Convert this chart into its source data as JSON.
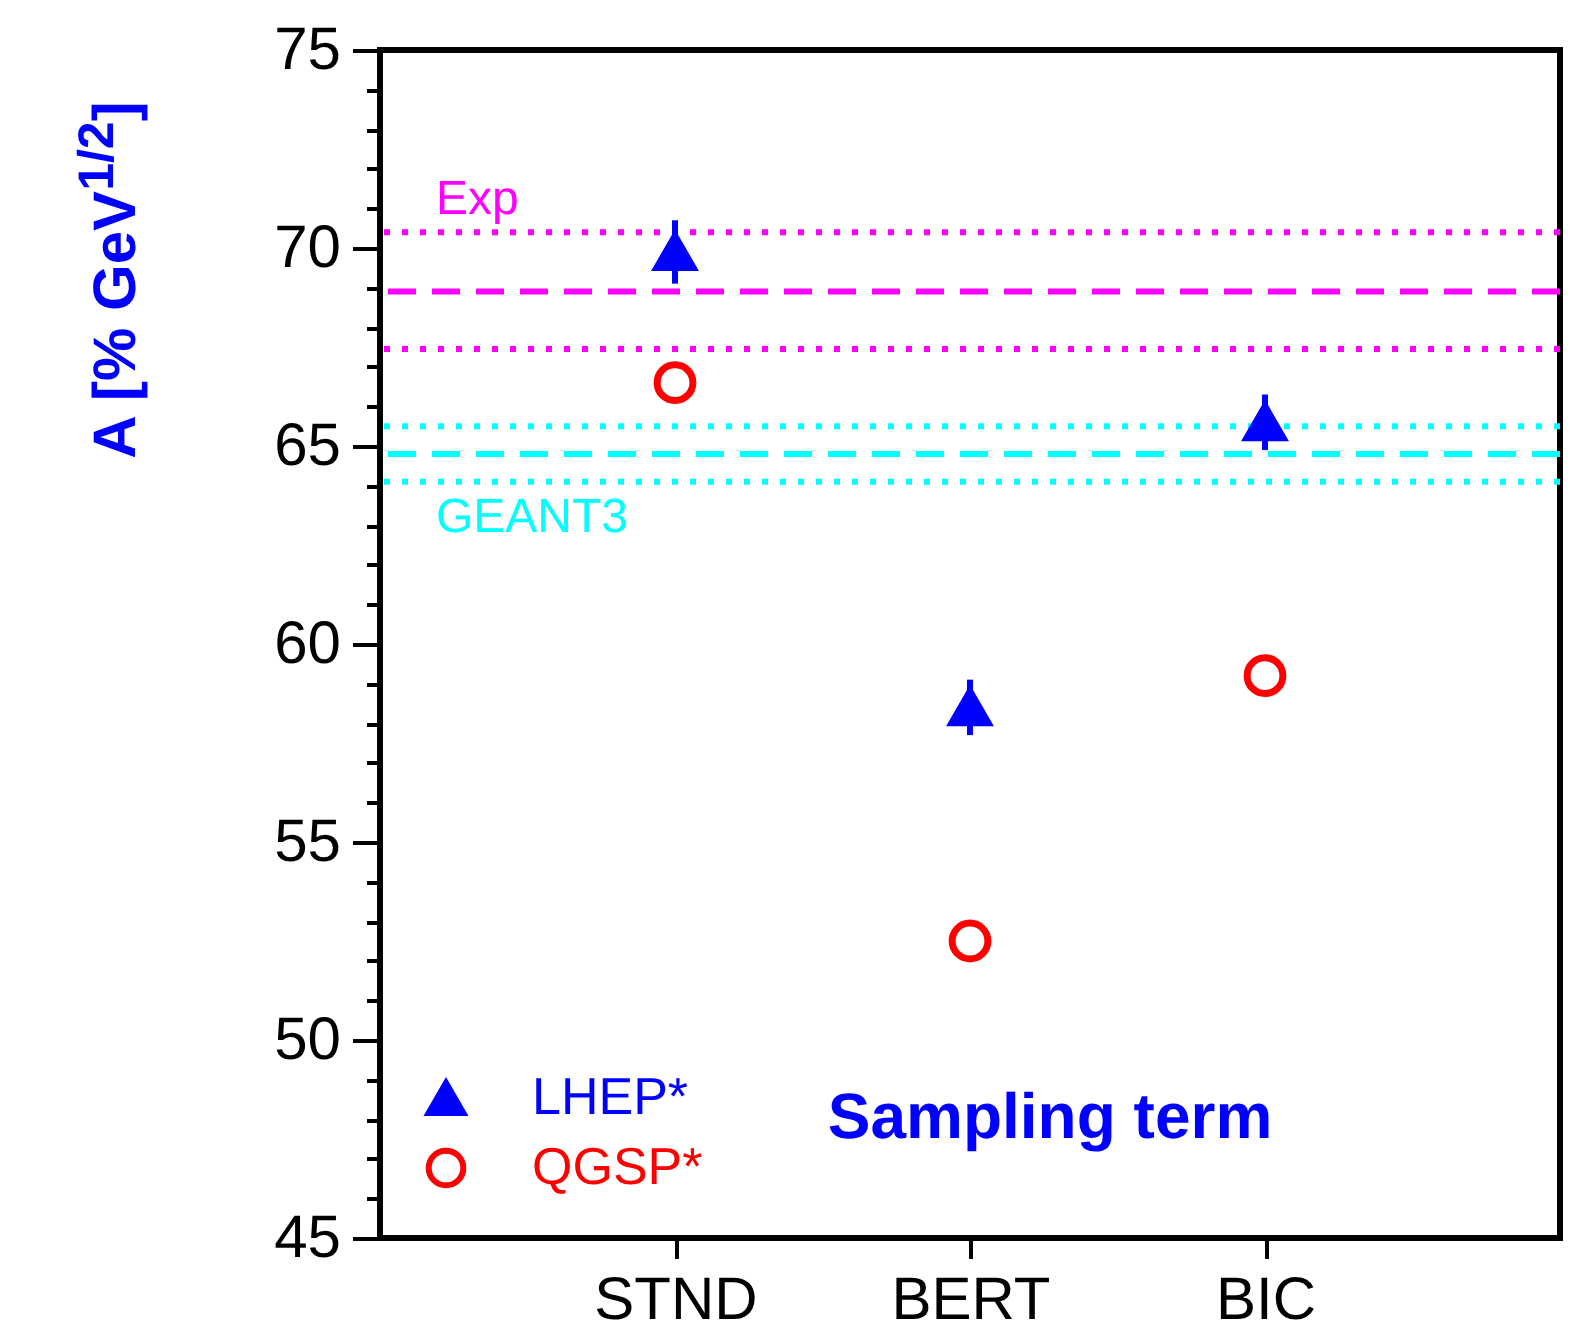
{
  "chart_data": {
    "type": "scatter",
    "ylabel": "A [% GeV$^{1/2}$]",
    "categories": [
      "STND",
      "BERT",
      "BIC"
    ],
    "series": [
      {
        "name": "LHEP*",
        "color": "#0000ff",
        "marker": "triangle",
        "values": [
          69.9,
          58.4,
          65.6
        ],
        "errors": [
          0.8,
          0.7,
          0.7
        ]
      },
      {
        "name": "QGSP*",
        "color": "#ff0000",
        "marker": "circle",
        "values": [
          66.6,
          52.5,
          59.2
        ]
      }
    ],
    "ylim": [
      45,
      75
    ],
    "yticks": [
      45,
      {
        "value": 46,
        "label": null
      },
      {
        "value": 47,
        "label": null
      },
      {
        "value": 48,
        "label": null
      },
      {
        "value": 49,
        "label": null
      },
      50,
      {
        "value": 51,
        "label": null
      },
      {
        "value": 52,
        "label": null
      },
      {
        "value": 53,
        "label": null
      },
      {
        "value": 54,
        "label": null
      },
      55,
      {
        "value": 56,
        "label": null
      },
      {
        "value": 57,
        "label": null
      },
      {
        "value": 58,
        "label": null
      },
      {
        "value": 59,
        "label": null
      },
      60,
      {
        "value": 61,
        "label": null
      },
      {
        "value": 62,
        "label": null
      },
      {
        "value": 63,
        "label": null
      },
      {
        "value": 64,
        "label": null
      },
      65,
      {
        "value": 66,
        "label": null
      },
      {
        "value": 67,
        "label": null
      },
      {
        "value": 68,
        "label": null
      },
      {
        "value": 69,
        "label": null
      },
      70,
      {
        "value": 71,
        "label": null
      },
      {
        "value": 72,
        "label": null
      },
      {
        "value": 73,
        "label": null
      },
      {
        "value": 74,
        "label": null
      },
      75
    ],
    "ref_lines": [
      {
        "axis": "y",
        "value": 70.4,
        "label": "Exp",
        "color": "#ff00ff",
        "line_style": "dotted"
      },
      {
        "axis": "y",
        "value": 68.9,
        "color": "#ff00ff",
        "line_style": "dashed"
      },
      {
        "axis": "y",
        "value": 67.45,
        "color": "#ff00ff",
        "line_style": "dotted"
      },
      {
        "axis": "y",
        "value": 65.5,
        "color": "#00ffff",
        "line_style": "dotted"
      },
      {
        "axis": "y",
        "value": 64.8,
        "color": "#00ffff",
        "line_style": "dashed"
      },
      {
        "axis": "y",
        "value": 64.1,
        "label": "GEANT3",
        "color": "#00ffff",
        "line_style": "dotted"
      }
    ],
    "annotations": [
      "Sampling term"
    ],
    "legend": "bottom left",
    "grid": false
  }
}
